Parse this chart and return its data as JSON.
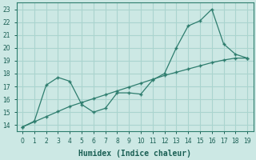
{
  "xlabel": "Humidex (Indice chaleur)",
  "x": [
    0,
    1,
    2,
    3,
    4,
    5,
    6,
    7,
    8,
    9,
    10,
    11,
    12,
    13,
    14,
    15,
    16,
    17,
    18,
    19
  ],
  "line1_y": [
    13.85,
    14.25,
    14.65,
    15.05,
    15.45,
    15.75,
    16.05,
    16.35,
    16.65,
    16.95,
    17.25,
    17.55,
    17.85,
    18.1,
    18.35,
    18.6,
    18.85,
    19.05,
    19.2,
    19.2
  ],
  "line2_y": [
    13.85,
    14.3,
    17.1,
    17.7,
    17.4,
    15.6,
    15.0,
    15.3,
    16.5,
    16.5,
    16.4,
    17.5,
    18.0,
    20.0,
    21.7,
    22.1,
    23.0,
    20.3,
    19.5,
    19.2
  ],
  "line_color": "#2e7d6e",
  "bg_color": "#cce8e4",
  "grid_color": "#aad4cf",
  "ylim": [
    13.5,
    23.5
  ],
  "xlim": [
    -0.5,
    19.5
  ],
  "yticks": [
    14,
    15,
    16,
    17,
    18,
    19,
    20,
    21,
    22,
    23
  ],
  "xticks": [
    0,
    1,
    2,
    3,
    4,
    5,
    6,
    7,
    8,
    9,
    10,
    11,
    12,
    13,
    14,
    15,
    16,
    17,
    18,
    19
  ]
}
